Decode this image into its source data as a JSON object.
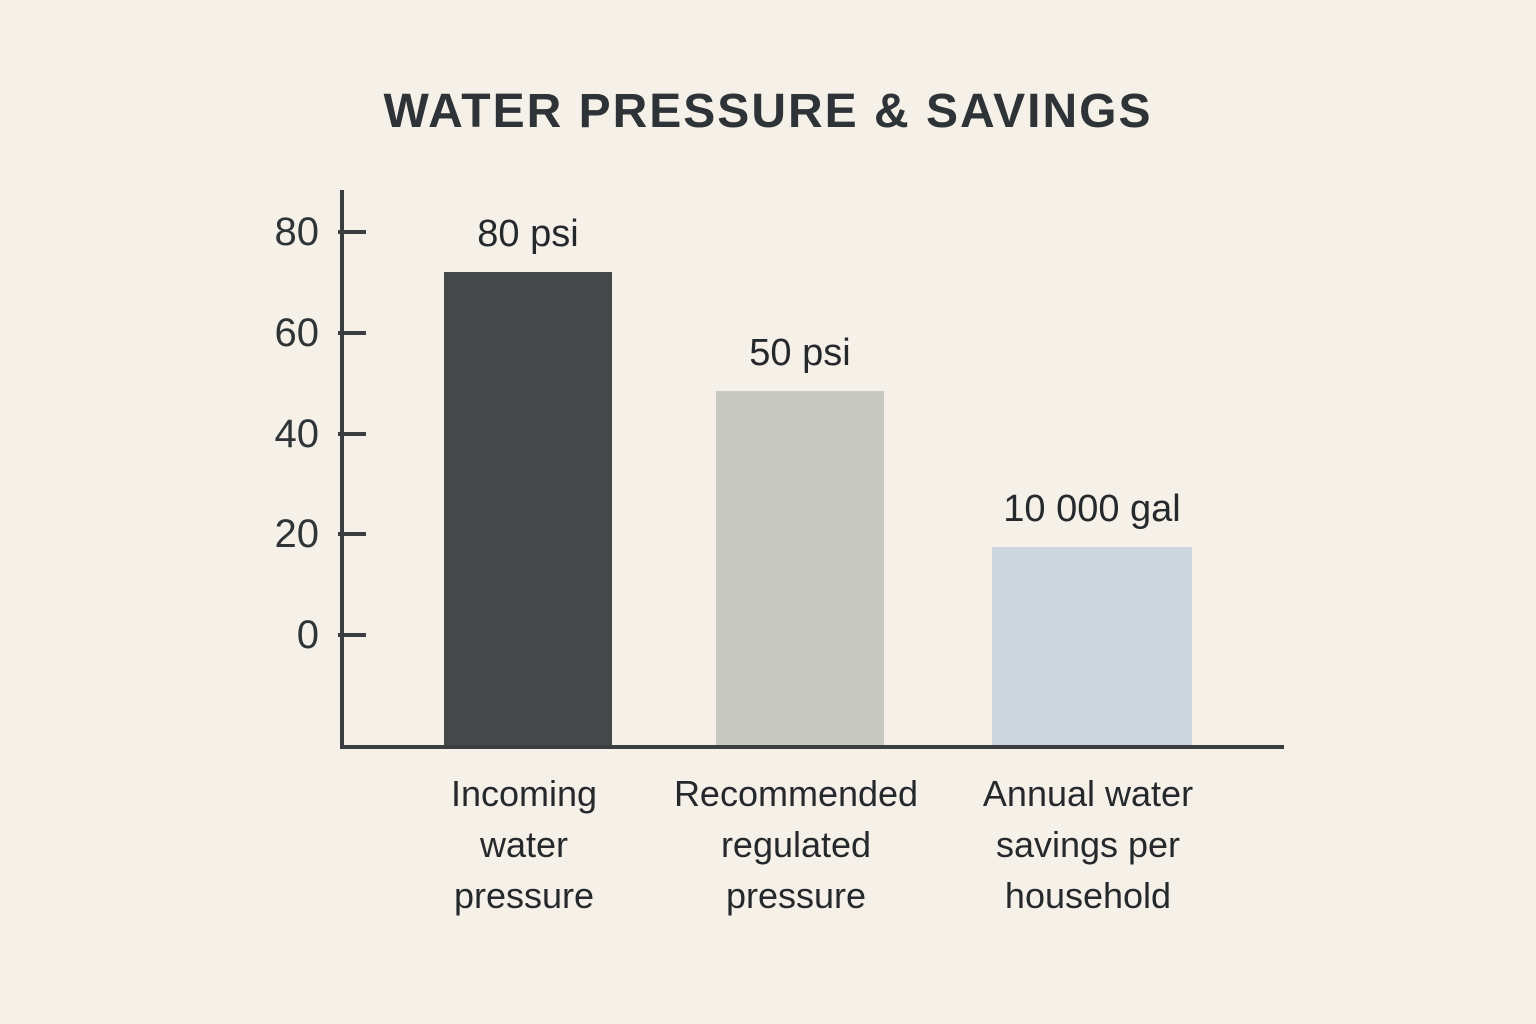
{
  "chart_data": {
    "type": "bar",
    "title": "WATER PRESSURE & SAVINGS",
    "categories": [
      "Incoming\nwater\npressure",
      "Recommended\nregulated\npressure",
      "Annual water\nsavings per\nhousehold"
    ],
    "values": [
      80,
      50,
      10000
    ],
    "units": [
      "psi",
      "psi",
      "gal"
    ],
    "value_labels": [
      "80 psi",
      "50 psi",
      "10 000 gal"
    ],
    "drawn_heights_axis_units": [
      72,
      48.5,
      17.5
    ],
    "yticks": [
      0,
      20,
      40,
      60,
      80
    ],
    "ylim": [
      0,
      80
    ],
    "xlabel": "",
    "ylabel": "",
    "grid": false,
    "legend_position": "none",
    "bar_colors": [
      "#45484b",
      "#c7c9c2",
      "#cdd5dd"
    ],
    "background_color": "#f6f1e8",
    "text_color": "#2f3437",
    "axis_color": "#3a3e41"
  }
}
